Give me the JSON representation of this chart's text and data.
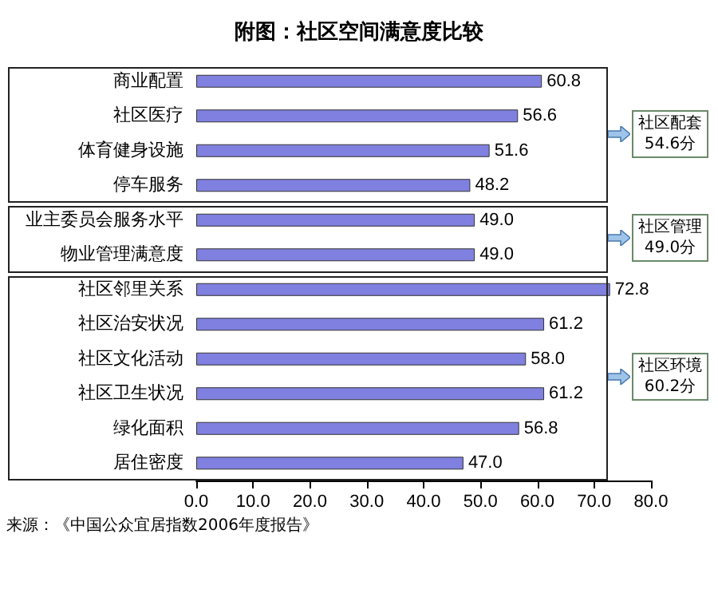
{
  "chart_data": {
    "type": "bar",
    "orientation": "horizontal",
    "title": "附图：社区空间满意度比较",
    "categories": [
      "商业配置",
      "社区医疗",
      "体育健身设施",
      "停车服务",
      "业主委员会服务水平",
      "物业管理满意度",
      "社区邻里关系",
      "社区治安状况",
      "社区文化活动",
      "社区卫生状况",
      "绿化面积",
      "居住密度"
    ],
    "values": [
      60.8,
      56.6,
      51.6,
      48.2,
      49.0,
      49.0,
      72.8,
      61.2,
      58.0,
      61.2,
      56.8,
      47.0
    ],
    "value_labels": [
      "60.8",
      "56.6",
      "51.6",
      "48.2",
      "49.0",
      "49.0",
      "72.8",
      "61.2",
      "58.0",
      "61.2",
      "56.8",
      "47.0"
    ],
    "color": "#8080e0",
    "xlim": [
      0,
      80
    ],
    "xticks": [
      {
        "value": 0,
        "label": "0.0"
      },
      {
        "value": 10,
        "label": "10.0"
      },
      {
        "value": 20,
        "label": "20.0"
      },
      {
        "value": 30,
        "label": "30.0"
      },
      {
        "value": 40,
        "label": "40.0"
      },
      {
        "value": 50,
        "label": "50.0"
      },
      {
        "value": 60,
        "label": "60.0"
      },
      {
        "value": 70,
        "label": "70.0"
      },
      {
        "value": 80,
        "label": "80.0"
      }
    ],
    "grid": false,
    "annotations": [
      "社区配套\n54.6分",
      "社区管理\n49.0分",
      "社区环境\n60.2分",
      "来源：《中国公众宜居指数2006年度报告》"
    ]
  }
}
